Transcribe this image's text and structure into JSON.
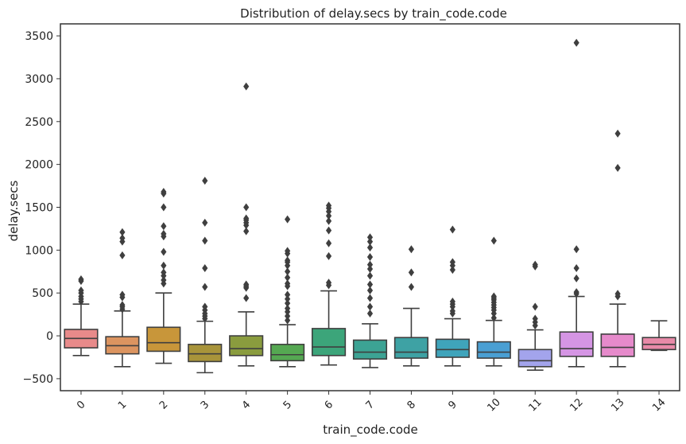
{
  "chart_data": {
    "type": "box",
    "title": "Distribution of delay.secs by train_code.code",
    "xlabel": "train_code.code",
    "ylabel": "delay.secs",
    "ylim": [
      -640,
      3640
    ],
    "yticks": [
      -500,
      0,
      500,
      1000,
      1500,
      2000,
      2500,
      3000,
      3500
    ],
    "grid": false,
    "categories": [
      "0",
      "1",
      "2",
      "3",
      "4",
      "5",
      "6",
      "7",
      "8",
      "9",
      "10",
      "11",
      "12",
      "13",
      "14"
    ],
    "boxes": [
      {
        "category": "0",
        "color": "#e88a8a",
        "whislo": -230,
        "q1": -140,
        "median": -30,
        "q3": 75,
        "whishi": 370,
        "fliers": [
          400,
          430,
          460,
          500,
          530,
          640,
          660
        ]
      },
      {
        "category": "1",
        "color": "#dc9460",
        "whislo": -360,
        "q1": -210,
        "median": -115,
        "q3": -10,
        "whishi": 290,
        "fliers": [
          310,
          340,
          360,
          450,
          480,
          940,
          1100,
          1140,
          1210
        ]
      },
      {
        "category": "2",
        "color": "#c8963a",
        "whislo": -320,
        "q1": -180,
        "median": -80,
        "q3": 100,
        "whishi": 500,
        "fliers": [
          610,
          650,
          700,
          740,
          820,
          980,
          1160,
          1190,
          1280,
          1500,
          1660,
          1680
        ]
      },
      {
        "category": "3",
        "color": "#a8943a",
        "whislo": -430,
        "q1": -300,
        "median": -210,
        "q3": -100,
        "whishi": 170,
        "fliers": [
          200,
          230,
          260,
          300,
          340,
          570,
          790,
          1110,
          1320,
          1810
        ]
      },
      {
        "category": "4",
        "color": "#8a9c3e",
        "whislo": -350,
        "q1": -230,
        "median": -150,
        "q3": 0,
        "whishi": 280,
        "fliers": [
          440,
          560,
          580,
          600,
          1220,
          1290,
          1320,
          1350,
          1370,
          1500,
          2910
        ]
      },
      {
        "category": "5",
        "color": "#55a852",
        "whislo": -360,
        "q1": -290,
        "median": -220,
        "q3": -100,
        "whishi": 130,
        "fliers": [
          180,
          230,
          280,
          320,
          380,
          430,
          480,
          580,
          610,
          680,
          750,
          820,
          860,
          880,
          960,
          990,
          1360
        ]
      },
      {
        "category": "6",
        "color": "#3ca57a",
        "whislo": -340,
        "q1": -230,
        "median": -130,
        "q3": 85,
        "whishi": 525,
        "fliers": [
          590,
          620,
          930,
          1080,
          1230,
          1340,
          1400,
          1450,
          1490,
          1520
        ]
      },
      {
        "category": "7",
        "color": "#3ca394",
        "whislo": -370,
        "q1": -270,
        "median": -190,
        "q3": -50,
        "whishi": 140,
        "fliers": [
          260,
          340,
          440,
          530,
          600,
          700,
          780,
          830,
          920,
          1030,
          1100,
          1150
        ]
      },
      {
        "category": "8",
        "color": "#3ea2a4",
        "whislo": -350,
        "q1": -260,
        "median": -190,
        "q3": -20,
        "whishi": 320,
        "fliers": [
          570,
          740,
          1010
        ]
      },
      {
        "category": "9",
        "color": "#3fa4bb",
        "whislo": -350,
        "q1": -250,
        "median": -160,
        "q3": -40,
        "whishi": 200,
        "fliers": [
          260,
          290,
          340,
          370,
          400,
          770,
          820,
          860,
          1240
        ]
      },
      {
        "category": "10",
        "color": "#4a9fd3",
        "whislo": -350,
        "q1": -260,
        "median": -190,
        "q3": -70,
        "whishi": 180,
        "fliers": [
          210,
          260,
          300,
          330,
          360,
          390,
          420,
          440,
          460,
          1110
        ]
      },
      {
        "category": "11",
        "color": "#a3a4ec",
        "whislo": -400,
        "q1": -360,
        "median": -290,
        "q3": -160,
        "whishi": 70,
        "fliers": [
          120,
          160,
          200,
          340,
          810,
          830
        ]
      },
      {
        "category": "12",
        "color": "#d595e4",
        "whislo": -360,
        "q1": -240,
        "median": -150,
        "q3": 45,
        "whishi": 460,
        "fliers": [
          490,
          510,
          670,
          790,
          1010,
          3420
        ]
      },
      {
        "category": "13",
        "color": "#e68acb",
        "whislo": -360,
        "q1": -240,
        "median": -135,
        "q3": 20,
        "whishi": 370,
        "fliers": [
          460,
          490,
          1960,
          2360
        ]
      },
      {
        "category": "14",
        "color": "#e78aa8",
        "whislo": -170,
        "q1": -160,
        "median": -100,
        "q3": -20,
        "whishi": 175,
        "fliers": []
      }
    ]
  }
}
